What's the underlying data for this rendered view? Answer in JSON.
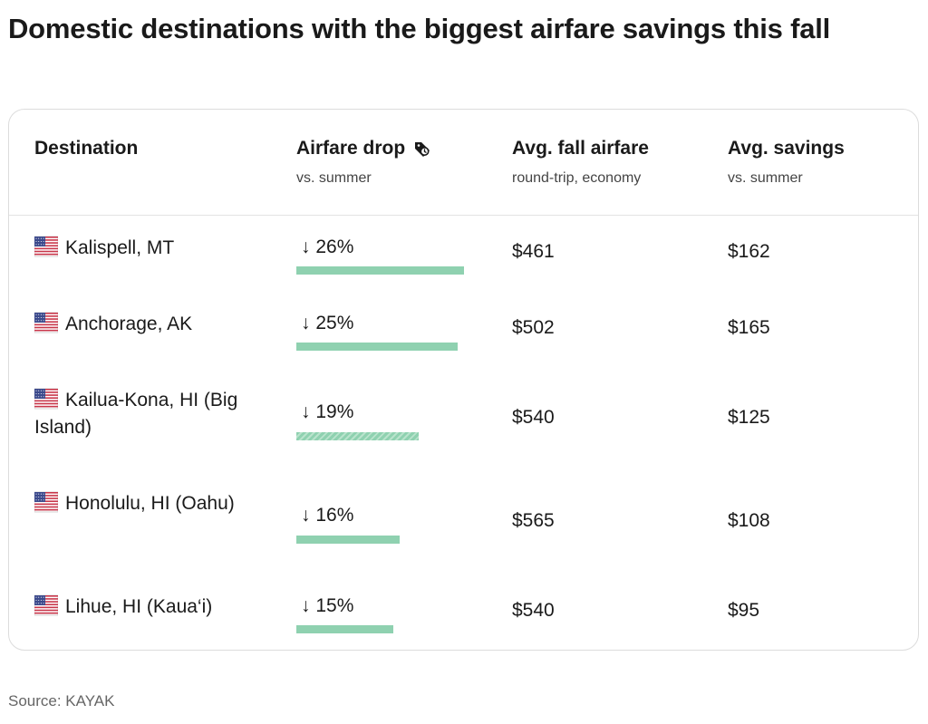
{
  "title": "Domestic destinations with the biggest airfare savings this fall",
  "source": "Source: KAYAK",
  "headers": {
    "destination": {
      "main": "Destination",
      "sub": ""
    },
    "airfare_drop": {
      "main": "Airfare drop",
      "sub": "vs. summer"
    },
    "avg_fall_airfare": {
      "main": "Avg. fall airfare",
      "sub": "round-trip, economy"
    },
    "avg_savings": {
      "main": "Avg. savings",
      "sub": "vs. summer"
    }
  },
  "colors": {
    "bar": "#8fd1b0",
    "text": "#1a1a1a",
    "border": "#dcdcdc"
  },
  "icons": {
    "flag": "us-flag-icon",
    "header_tag": "price-tag-icon"
  },
  "chart_data": {
    "type": "table",
    "title": "Domestic destinations with the biggest airfare savings this fall",
    "columns": [
      "Destination",
      "Airfare drop",
      "Avg. fall airfare",
      "Avg. savings"
    ],
    "bar_max_percent": 26,
    "rows": [
      {
        "destination": "Kalispell, MT",
        "drop": 26,
        "drop_label": "↓ 26%",
        "fare": "$461",
        "savings": "$162",
        "hatched": false
      },
      {
        "destination": "Anchorage, AK",
        "drop": 25,
        "drop_label": "↓ 25%",
        "fare": "$502",
        "savings": "$165",
        "hatched": false
      },
      {
        "destination": "Kailua-Kona, HI (Big Island)",
        "drop": 19,
        "drop_label": "↓ 19%",
        "fare": "$540",
        "savings": "$125",
        "hatched": true
      },
      {
        "destination": "Honolulu, HI (Oahu)",
        "drop": 16,
        "drop_label": "↓ 16%",
        "fare": "$565",
        "savings": "$108",
        "hatched": false
      },
      {
        "destination": "Lihue, HI (Kaua‘i)",
        "drop": 15,
        "drop_label": "↓ 15%",
        "fare": "$540",
        "savings": "$95",
        "hatched": false
      }
    ]
  }
}
